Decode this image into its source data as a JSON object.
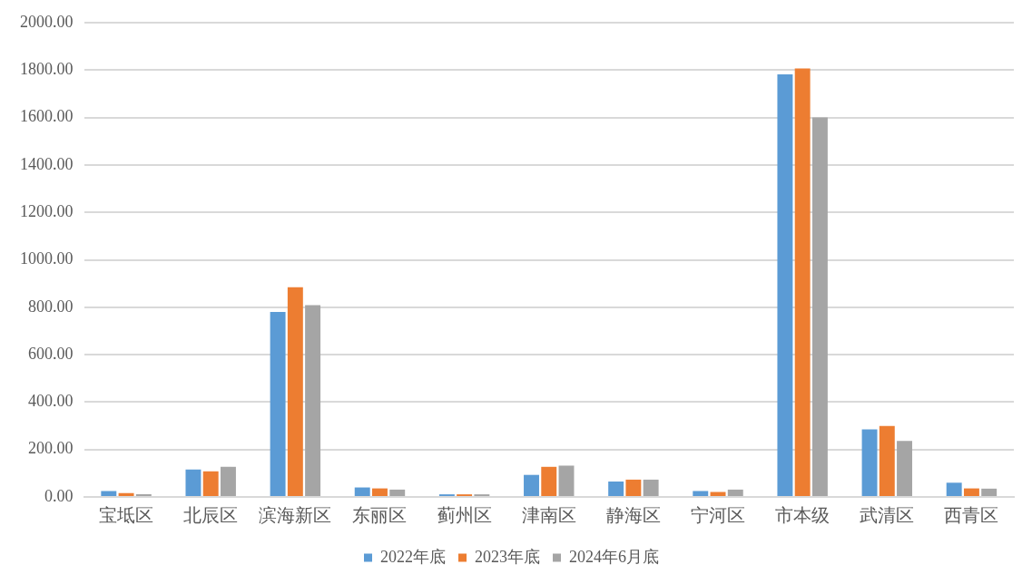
{
  "chart_data": {
    "type": "bar",
    "categories": [
      "宝坻区",
      "北辰区",
      "滨海新区",
      "东丽区",
      "蓟州区",
      "津南区",
      "静海区",
      "宁河区",
      "市本级",
      "武清区",
      "西青区"
    ],
    "series": [
      {
        "name": "2022年底",
        "color": "#5b9bd5",
        "values": [
          25,
          116,
          780,
          40,
          11,
          93,
          65,
          25,
          1782,
          285,
          60
        ]
      },
      {
        "name": "2023年底",
        "color": "#ed7d31",
        "values": [
          16,
          108,
          884,
          36,
          11,
          127,
          73,
          21,
          1807,
          299,
          36
        ]
      },
      {
        "name": "2024年6月底",
        "color": "#a5a5a5",
        "values": [
          11,
          127,
          809,
          31,
          11,
          132,
          73,
          31,
          1600,
          236,
          35
        ]
      }
    ],
    "ylim": [
      0,
      2000
    ],
    "yticks": [
      {
        "value": 0,
        "label": "0.00"
      },
      {
        "value": 200,
        "label": "200.00"
      },
      {
        "value": 400,
        "label": "400.00"
      },
      {
        "value": 600,
        "label": "600.00"
      },
      {
        "value": 800,
        "label": "800.00"
      },
      {
        "value": 1000,
        "label": "1000.00"
      },
      {
        "value": 1200,
        "label": "1200.00"
      },
      {
        "value": 1400,
        "label": "1400.00"
      },
      {
        "value": 1600,
        "label": "1600.00"
      },
      {
        "value": 1800,
        "label": "1800.00"
      },
      {
        "value": 2000,
        "label": "2000.00"
      }
    ],
    "grid": "y",
    "legend": "bottom"
  }
}
